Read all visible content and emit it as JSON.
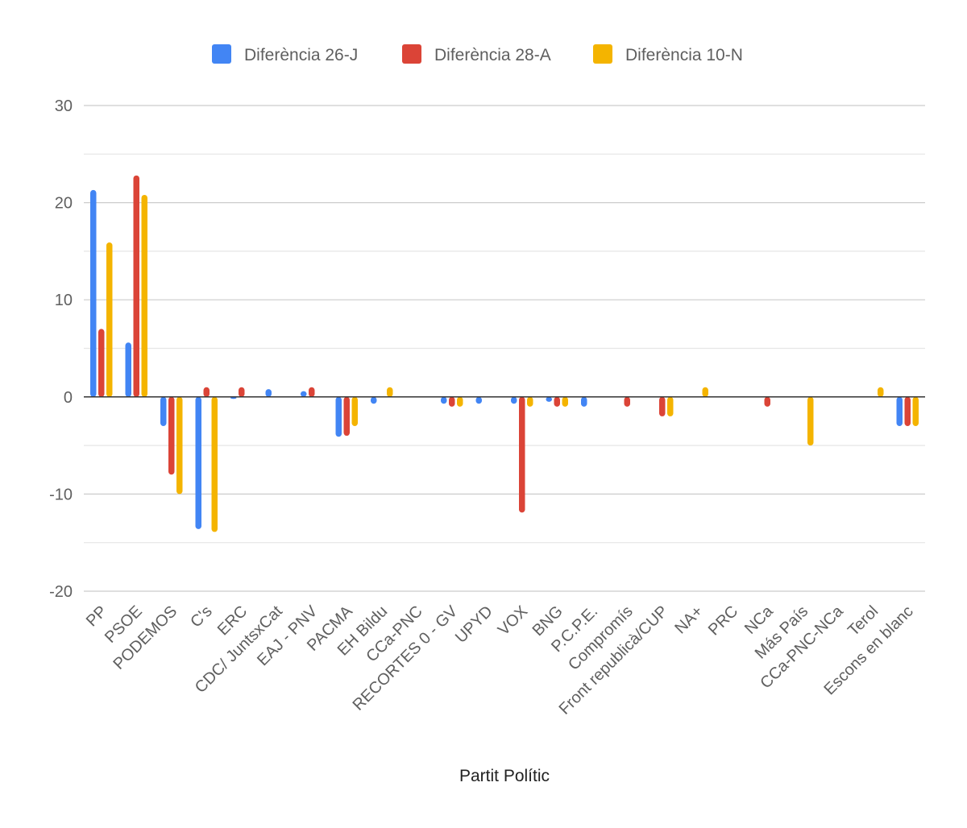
{
  "chart_data": {
    "type": "bar",
    "title": "",
    "xlabel": "Partit Polític",
    "ylabel": "",
    "ylim": [
      -20,
      30
    ],
    "yticks": [
      30,
      20,
      10,
      0,
      -10,
      -20
    ],
    "grid": true,
    "legend_position": "top",
    "categories": [
      "PP",
      "PSOE",
      "PODEMOS",
      "C's",
      "ERC",
      "CDC/ JuntsxCat",
      "EAJ - PNV",
      "PACMA",
      "EH Bildu",
      "CCa-PNC",
      "RECORTES 0 - GV",
      "UPYD",
      "VOX",
      "BNG",
      "P.C.P.E.",
      "Compromís",
      "Front republicà/CUP",
      "NA+",
      "PRC",
      "NCa",
      "Más País",
      "CCa-PNC-NCa",
      "Terol",
      "Escons en blanc"
    ],
    "series": [
      {
        "name": "Diferència 26-J",
        "color": "#4285f4",
        "values": [
          21.3,
          5.6,
          -3,
          -13.6,
          -0.2,
          0.8,
          0.6,
          -4.1,
          -0.7,
          0,
          -0.7,
          -0.7,
          -0.7,
          -0.5,
          -1,
          0,
          0,
          0,
          0,
          0,
          0,
          0,
          0,
          -3
        ]
      },
      {
        "name": "Diferència 28-A",
        "color": "#db4437",
        "values": [
          7,
          22.8,
          -8,
          1,
          1,
          0,
          1,
          -4,
          0,
          0,
          -1,
          0,
          -11.9,
          -1,
          0,
          -1,
          -2,
          0,
          0,
          -1,
          0,
          0,
          0,
          -3
        ]
      },
      {
        "name": "Diferència 10-N",
        "color": "#f4b400",
        "values": [
          15.9,
          20.8,
          -10,
          -13.9,
          0,
          0,
          0,
          -3,
          1,
          0,
          -1,
          0,
          -1,
          -1,
          0,
          0,
          -2,
          1,
          0,
          0,
          -5,
          0,
          1,
          -3
        ]
      }
    ]
  }
}
